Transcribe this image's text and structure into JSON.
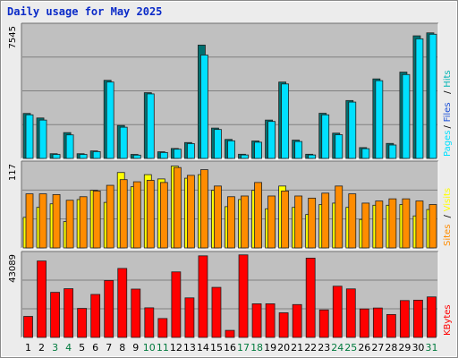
{
  "title": "Daily usage for May 2025",
  "colors": {
    "hits": "#00b4b4",
    "files": "#1a4fd6",
    "pages": "#00e0ff",
    "sites": "#ff8c00",
    "visits": "#ffff00",
    "kbytes": "#ff0000",
    "weekend_label": "#007a3d",
    "weekday_label": "#000000"
  },
  "chart_data": [
    {
      "type": "bar",
      "panel": "hits-files-pages",
      "y_max_label": "7545",
      "ylim": [
        0,
        7545
      ],
      "grid": true,
      "legend_labels": [
        "Pages",
        "/",
        "Files",
        "/",
        "Hits"
      ],
      "categories": [
        "1",
        "2",
        "3",
        "4",
        "5",
        "6",
        "7",
        "8",
        "9",
        "10",
        "11",
        "12",
        "13",
        "14",
        "15",
        "16",
        "17",
        "18",
        "19",
        "20",
        "21",
        "22",
        "23",
        "24",
        "25",
        "26",
        "27",
        "28",
        "29",
        "30",
        "31"
      ],
      "series": [
        {
          "name": "Hits",
          "values": [
            2580,
            2320,
            270,
            1480,
            270,
            430,
            4480,
            1890,
            230,
            3770,
            380,
            570,
            910,
            6500,
            1740,
            1090,
            240,
            1000,
            2200,
            4380,
            1050,
            240,
            2590,
            1450,
            3320,
            620,
            4560,
            860,
            4950,
            7030,
            7200
          ]
        },
        {
          "name": "Pages",
          "values": [
            2500,
            2200,
            230,
            1350,
            230,
            390,
            4380,
            1790,
            190,
            3700,
            340,
            530,
            850,
            5930,
            1660,
            1010,
            200,
            930,
            2120,
            4270,
            970,
            200,
            2500,
            1360,
            3230,
            560,
            4460,
            770,
            4810,
            6860,
            7120
          ]
        }
      ]
    },
    {
      "type": "bar",
      "panel": "sites-visits",
      "y_max_label": "117",
      "ylim": [
        0,
        117
      ],
      "grid": true,
      "legend_labels": [
        "Sites",
        "/",
        "Visits"
      ],
      "categories": [
        "1",
        "2",
        "3",
        "4",
        "5",
        "6",
        "7",
        "8",
        "9",
        "10",
        "11",
        "12",
        "13",
        "14",
        "15",
        "16",
        "17",
        "18",
        "19",
        "20",
        "21",
        "22",
        "23",
        "24",
        "25",
        "26",
        "27",
        "28",
        "29",
        "30",
        "31"
      ],
      "series": [
        {
          "name": "Visits",
          "values": [
            43,
            57,
            62,
            37,
            68,
            81,
            64,
            106,
            86,
            103,
            97,
            115,
            98,
            103,
            81,
            58,
            68,
            81,
            55,
            87,
            57,
            47,
            61,
            63,
            57,
            40,
            60,
            60,
            61,
            45,
            54
          ]
        },
        {
          "name": "Sites",
          "values": [
            76,
            76,
            75,
            67,
            72,
            80,
            88,
            96,
            93,
            95,
            92,
            113,
            102,
            110,
            87,
            72,
            73,
            92,
            73,
            80,
            73,
            70,
            77,
            87,
            76,
            63,
            66,
            69,
            69,
            66,
            61
          ]
        }
      ]
    },
    {
      "type": "bar",
      "panel": "kbytes",
      "y_max_label": "43089",
      "ylim": [
        0,
        43089
      ],
      "grid": true,
      "legend_labels": [
        "KBytes"
      ],
      "categories": [
        "1",
        "2",
        "3",
        "4",
        "5",
        "6",
        "7",
        "8",
        "9",
        "10",
        "11",
        "12",
        "13",
        "14",
        "15",
        "16",
        "17",
        "18",
        "19",
        "20",
        "21",
        "22",
        "23",
        "24",
        "25",
        "26",
        "27",
        "28",
        "29",
        "30",
        "31"
      ],
      "series": [
        {
          "name": "KBytes",
          "values": [
            11000,
            40000,
            23600,
            25500,
            15200,
            22500,
            29800,
            36100,
            25300,
            15500,
            9900,
            34300,
            20700,
            42700,
            26200,
            3700,
            43200,
            17600,
            17600,
            12900,
            17200,
            41500,
            14400,
            26800,
            25400,
            14900,
            15400,
            12000,
            19300,
            19500,
            21200
          ]
        }
      ]
    }
  ]
}
